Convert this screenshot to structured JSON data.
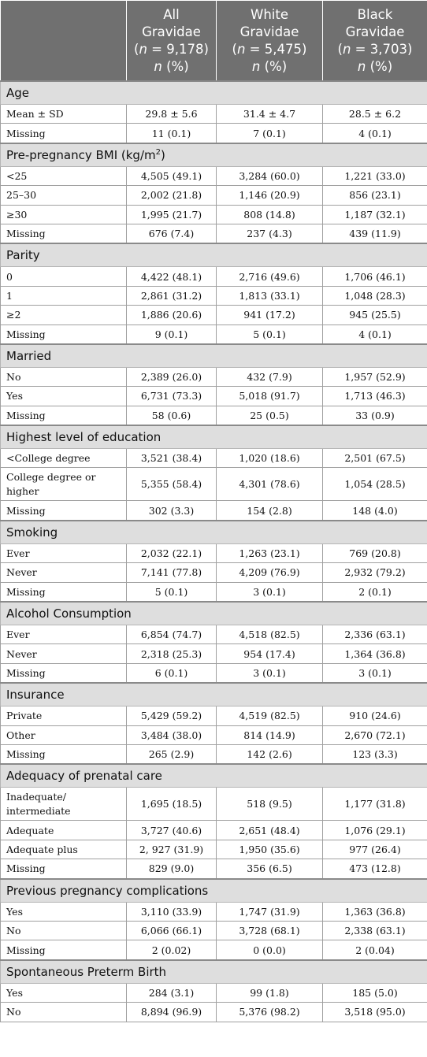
{
  "header": {
    "cols": [
      {
        "l1": "All",
        "l2": "Gravidae",
        "n": "9,178"
      },
      {
        "l1": "White",
        "l2": "Gravidae",
        "n": "5,475"
      },
      {
        "l1": "Black",
        "l2": "Gravidae",
        "n": "3,703"
      }
    ],
    "n_label": "n",
    "n_prefix": "(",
    "n_eq": " = ",
    "n_suffix": ")",
    "pct_label": " (%)"
  },
  "sections": [
    {
      "title": "Age",
      "rows": [
        {
          "label": "Mean ± SD",
          "v": [
            "29.8 ± 5.6",
            "31.4 ± 4.7",
            "28.5 ± 6.2"
          ]
        },
        {
          "label": "Missing",
          "v": [
            "11 (0.1)",
            "7 (0.1)",
            "4 (0.1)"
          ]
        }
      ]
    },
    {
      "title": "Pre-pregnancy BMI (kg/m",
      "title_sup": "2",
      "title_end": ")",
      "rows": [
        {
          "label": "<25",
          "v": [
            "4,505 (49.1)",
            "3,284 (60.0)",
            "1,221 (33.0)"
          ]
        },
        {
          "label": "25–30",
          "v": [
            "2,002 (21.8)",
            "1,146 (20.9)",
            "856 (23.1)"
          ]
        },
        {
          "label": "≥30",
          "v": [
            "1,995 (21.7)",
            "808 (14.8)",
            "1,187 (32.1)"
          ]
        },
        {
          "label": "Missing",
          "v": [
            "676 (7.4)",
            "237 (4.3)",
            "439 (11.9)"
          ]
        }
      ]
    },
    {
      "title": "Parity",
      "rows": [
        {
          "label": "0",
          "v": [
            "4,422 (48.1)",
            "2,716 (49.6)",
            "1,706 (46.1)"
          ]
        },
        {
          "label": "1",
          "v": [
            "2,861 (31.2)",
            "1,813 (33.1)",
            "1,048 (28.3)"
          ]
        },
        {
          "label": "≥2",
          "v": [
            "1,886 (20.6)",
            "941 (17.2)",
            "945 (25.5)"
          ]
        },
        {
          "label": "Missing",
          "v": [
            "9 (0.1)",
            "5 (0.1)",
            "4 (0.1)"
          ]
        }
      ]
    },
    {
      "title": "Married",
      "rows": [
        {
          "label": "No",
          "v": [
            "2,389 (26.0)",
            "432 (7.9)",
            "1,957 (52.9)"
          ]
        },
        {
          "label": "Yes",
          "v": [
            "6,731 (73.3)",
            "5,018 (91.7)",
            "1,713 (46.3)"
          ]
        },
        {
          "label": "Missing",
          "v": [
            "58 (0.6)",
            "25 (0.5)",
            "33 (0.9)"
          ]
        }
      ]
    },
    {
      "title": "Highest level of education",
      "rows": [
        {
          "label": "<College degree",
          "v": [
            "3,521 (38.4)",
            "1,020 (18.6)",
            "2,501 (67.5)"
          ]
        },
        {
          "label": "College degree or higher",
          "tall": true,
          "v": [
            "5,355 (58.4)",
            "4,301 (78.6)",
            "1,054 (28.5)"
          ]
        },
        {
          "label": "Missing",
          "v": [
            "302 (3.3)",
            "154 (2.8)",
            "148 (4.0)"
          ]
        }
      ]
    },
    {
      "title": "Smoking",
      "rows": [
        {
          "label": "Ever",
          "v": [
            "2,032 (22.1)",
            "1,263 (23.1)",
            "769 (20.8)"
          ]
        },
        {
          "label": "Never",
          "v": [
            "7,141 (77.8)",
            "4,209 (76.9)",
            "2,932 (79.2)"
          ]
        },
        {
          "label": "Missing",
          "v": [
            "5 (0.1)",
            "3 (0.1)",
            "2 (0.1)"
          ]
        }
      ]
    },
    {
      "title": "Alcohol Consumption",
      "rows": [
        {
          "label": "Ever",
          "v": [
            "6,854 (74.7)",
            "4,518 (82.5)",
            "2,336 (63.1)"
          ]
        },
        {
          "label": "Never",
          "v": [
            "2,318 (25.3)",
            "954 (17.4)",
            "1,364 (36.8)"
          ]
        },
        {
          "label": "Missing",
          "v": [
            "6 (0.1)",
            "3 (0.1)",
            "3 (0.1)"
          ]
        }
      ]
    },
    {
      "title": "Insurance",
      "rows": [
        {
          "label": "Private",
          "v": [
            "5,429 (59.2)",
            "4,519 (82.5)",
            "910 (24.6)"
          ]
        },
        {
          "label": "Other",
          "v": [
            "3,484 (38.0)",
            "814 (14.9)",
            "2,670 (72.1)"
          ]
        },
        {
          "label": "Missing",
          "v": [
            "265 (2.9)",
            "142 (2.6)",
            "123 (3.3)"
          ]
        }
      ]
    },
    {
      "title": "Adequacy of prenatal care",
      "rows": [
        {
          "label": "Inadequate/ intermediate",
          "tall": true,
          "v": [
            "1,695 (18.5)",
            "518 (9.5)",
            "1,177 (31.8)"
          ]
        },
        {
          "label": "Adequate",
          "v": [
            "3,727 (40.6)",
            "2,651 (48.4)",
            "1,076 (29.1)"
          ]
        },
        {
          "label": "Adequate plus",
          "v": [
            "2, 927 (31.9)",
            "1,950 (35.6)",
            "977 (26.4)"
          ]
        },
        {
          "label": "Missing",
          "v": [
            "829 (9.0)",
            "356 (6.5)",
            "473 (12.8)"
          ]
        }
      ]
    },
    {
      "title": "Previous pregnancy complications",
      "rows": [
        {
          "label": "Yes",
          "v": [
            "3,110 (33.9)",
            "1,747 (31.9)",
            "1,363 (36.8)"
          ]
        },
        {
          "label": "No",
          "v": [
            "6,066 (66.1)",
            "3,728 (68.1)",
            "2,338 (63.1)"
          ]
        },
        {
          "label": "Missing",
          "v": [
            "2 (0.02)",
            "0 (0.0)",
            "2 (0.04)"
          ]
        }
      ]
    },
    {
      "title": "Spontaneous Preterm Birth",
      "rows": [
        {
          "label": "Yes",
          "v": [
            "284 (3.1)",
            "99 (1.8)",
            "185 (5.0)"
          ]
        },
        {
          "label": "No",
          "v": [
            "8,894 (96.9)",
            "5,376 (98.2)",
            "3,518 (95.0)"
          ]
        }
      ]
    }
  ]
}
